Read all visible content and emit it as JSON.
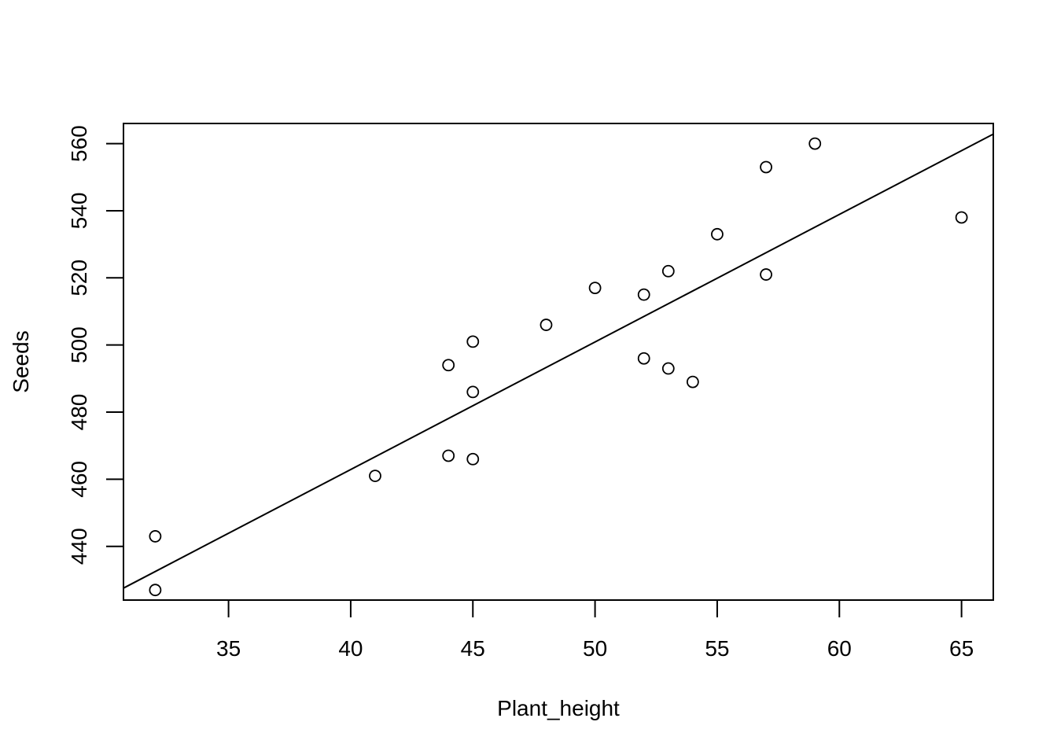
{
  "chart_data": {
    "type": "scatter",
    "title": "",
    "xlabel": "Plant_height",
    "ylabel": "Seeds",
    "xlim": [
      30.7,
      66.3
    ],
    "ylim": [
      424,
      566
    ],
    "xticks": [
      "35",
      "40",
      "45",
      "50",
      "55",
      "60",
      "65"
    ],
    "yticks": [
      "440",
      "460",
      "480",
      "500",
      "520",
      "540",
      "560"
    ],
    "grid": false,
    "legend": "none",
    "points": [
      {
        "x": 32,
        "y": 443
      },
      {
        "x": 32,
        "y": 427
      },
      {
        "x": 41,
        "y": 461
      },
      {
        "x": 44,
        "y": 494
      },
      {
        "x": 44,
        "y": 467
      },
      {
        "x": 45,
        "y": 501
      },
      {
        "x": 45,
        "y": 486
      },
      {
        "x": 45,
        "y": 466
      },
      {
        "x": 48,
        "y": 506
      },
      {
        "x": 50,
        "y": 517
      },
      {
        "x": 52,
        "y": 515
      },
      {
        "x": 52,
        "y": 496
      },
      {
        "x": 53,
        "y": 522
      },
      {
        "x": 53,
        "y": 493
      },
      {
        "x": 54,
        "y": 489
      },
      {
        "x": 55,
        "y": 533
      },
      {
        "x": 57,
        "y": 553
      },
      {
        "x": 57,
        "y": 521
      },
      {
        "x": 59,
        "y": 560
      },
      {
        "x": 65,
        "y": 538
      }
    ],
    "fit_line": {
      "intercept": 310.9,
      "slope": 3.8
    },
    "colors": {
      "points": "#000000",
      "line": "#000000",
      "frame": "#000000"
    }
  }
}
